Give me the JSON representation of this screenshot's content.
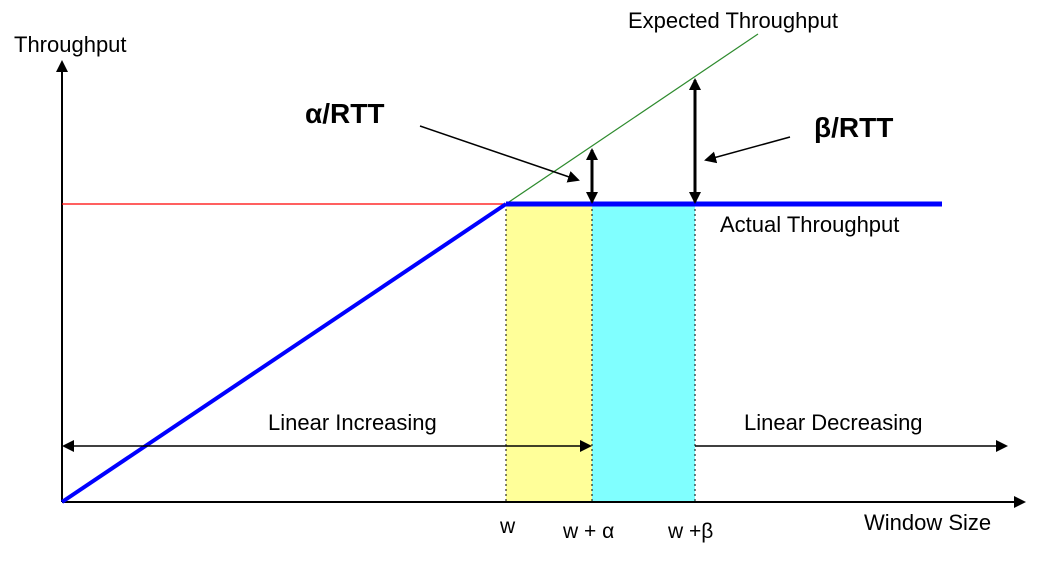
{
  "axes": {
    "y_label": "Throughput",
    "x_label": "Window Size"
  },
  "lines": {
    "expected": "Expected Throughput",
    "actual": "Actual Throughput"
  },
  "annotations": {
    "alpha": "α/RTT",
    "beta": "β/RTT"
  },
  "regions": {
    "increasing": "Linear Increasing",
    "decreasing": "Linear Decreasing"
  },
  "ticks": {
    "w": "w",
    "w_alpha": "w + α",
    "w_beta": "w +β"
  },
  "colors": {
    "expected_line": "#2e8b2e",
    "actual_line": "#0000ff",
    "reference_line": "#ff0000",
    "alpha_band": "#ffff99",
    "beta_band": "#80ffff"
  }
}
